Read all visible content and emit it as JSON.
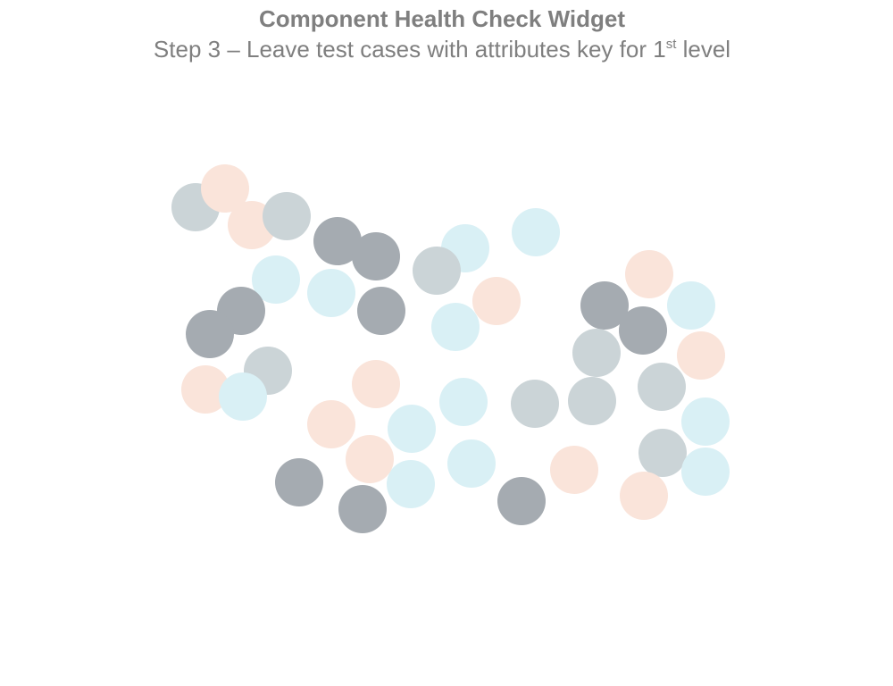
{
  "header": {
    "title": "Component Health Check Widget",
    "subtitle_main": "Step 3  – Leave test cases with attributes key for 1",
    "subtitle_sup": "st",
    "subtitle_end": " level"
  },
  "palette": {
    "peach": "#fae4da",
    "light_gray": "#cbd4d7",
    "dark_gray": "#a5abb1",
    "light_blue": "#d9f0f5"
  },
  "test_cases": [
    {
      "color": "light_gray"
    },
    {
      "color": "peach"
    },
    {
      "color": "peach"
    },
    {
      "color": "light_gray"
    },
    {
      "color": "dark_gray"
    },
    {
      "color": "dark_gray"
    },
    {
      "color": "light_blue"
    },
    {
      "color": "light_blue"
    },
    {
      "color": "light_gray"
    },
    {
      "color": "light_blue"
    },
    {
      "color": "light_blue"
    },
    {
      "color": "peach"
    },
    {
      "color": "dark_gray"
    },
    {
      "color": "dark_gray"
    },
    {
      "color": "dark_gray"
    },
    {
      "color": "light_blue"
    },
    {
      "color": "peach"
    },
    {
      "color": "dark_gray"
    },
    {
      "color": "light_blue"
    },
    {
      "color": "dark_gray"
    },
    {
      "color": "light_gray"
    },
    {
      "color": "peach"
    },
    {
      "color": "light_gray"
    },
    {
      "color": "peach"
    },
    {
      "color": "light_blue"
    },
    {
      "color": "peach"
    },
    {
      "color": "light_blue"
    },
    {
      "color": "light_blue"
    },
    {
      "color": "light_gray"
    },
    {
      "color": "light_gray"
    },
    {
      "color": "light_gray"
    },
    {
      "color": "light_blue"
    },
    {
      "color": "peach"
    },
    {
      "color": "light_blue"
    },
    {
      "color": "light_blue"
    },
    {
      "color": "peach"
    },
    {
      "color": "dark_gray"
    },
    {
      "color": "dark_gray"
    },
    {
      "color": "dark_gray"
    },
    {
      "color": "light_gray"
    },
    {
      "color": "peach"
    },
    {
      "color": "light_blue"
    },
    {
      "color": "peach"
    }
  ]
}
